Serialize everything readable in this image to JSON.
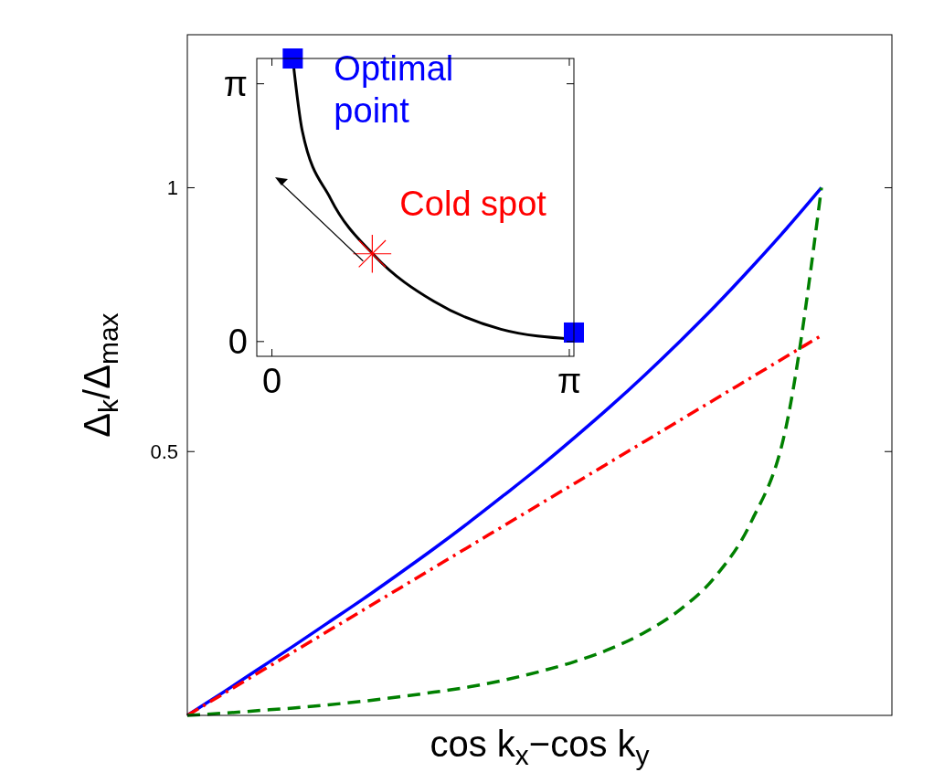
{
  "chart_data": [
    {
      "type": "line",
      "xlabel": "cos k$_{x}$−cos k$_{y}$",
      "ylabel": "Δ$_{k}$/Δ$_{max}$",
      "categories": [
        null,
        null,
        null,
        null,
        null,
        null,
        null,
        null,
        null,
        null,
        null,
        null,
        null,
        null,
        null,
        null,
        null,
        null,
        null,
        null,
        null
      ],
      "ylim": [
        0,
        1.29
      ],
      "yticks": [
        0.5,
        1
      ],
      "tick_labels": "y",
      "grid": false,
      "series": [
        {
          "color": "#0000ff",
          "line_style": "solid",
          "values": [
            0,
            0.043,
            0.087,
            0.131,
            0.176,
            0.221,
            0.268,
            0.316,
            0.366,
            0.418,
            0.471,
            0.527,
            0.585,
            0.646,
            0.71,
            0.777,
            0.848,
            0.922,
            1.0,
            null,
            null
          ]
        },
        {
          "color": "#ff0000",
          "line_style": "dashdot",
          "values": [
            0,
            0.04,
            0.08,
            0.12,
            0.16,
            0.2,
            0.24,
            0.28,
            0.32,
            0.36,
            0.4,
            0.44,
            0.48,
            0.52,
            0.56,
            0.6,
            0.64,
            0.68,
            0.72,
            null,
            null
          ]
        },
        {
          "color": "#008000",
          "line_style": "dashed",
          "values": [
            0,
            0.004,
            0.009,
            0.014,
            0.02,
            0.027,
            0.035,
            0.044,
            0.054,
            0.067,
            0.083,
            0.102,
            0.126,
            0.158,
            0.201,
            0.264,
            0.366,
            0.548,
            1.0,
            null,
            null
          ]
        }
      ]
    },
    {
      "type": "line",
      "xlim": [
        -0.16,
        3.19
      ],
      "ylim": [
        -0.18,
        3.45
      ],
      "xticks": [
        {
          "value": 0,
          "label": "0"
        },
        {
          "value": 3.1416,
          "label": "π"
        }
      ],
      "yticks": [
        {
          "value": 0,
          "label": "0"
        },
        {
          "value": 3.1416,
          "label": "π"
        }
      ],
      "grid": false,
      "series": [
        {
          "color": "#000000",
          "line_style": "solid",
          "marker": "none",
          "x": [
            0.22,
            0.32,
            0.62,
            1.09,
            1.71,
            2.42,
            3.19
          ],
          "values": [
            3.45,
            2.57,
            1.74,
            1.04,
            0.49,
            0.15,
            0.03
          ]
        },
        {
          "type": "scatter",
          "name": "Optimal point",
          "color": "#0000ff",
          "marker": "square",
          "x": [
            0.22,
            3.19
          ],
          "values": [
            3.45,
            0.11
          ]
        },
        {
          "type": "scatter",
          "name": "Cold spot",
          "color": "#ff0000",
          "marker": "cross",
          "x": [
            1.06
          ],
          "values": [
            1.07
          ]
        }
      ]
    }
  ]
}
